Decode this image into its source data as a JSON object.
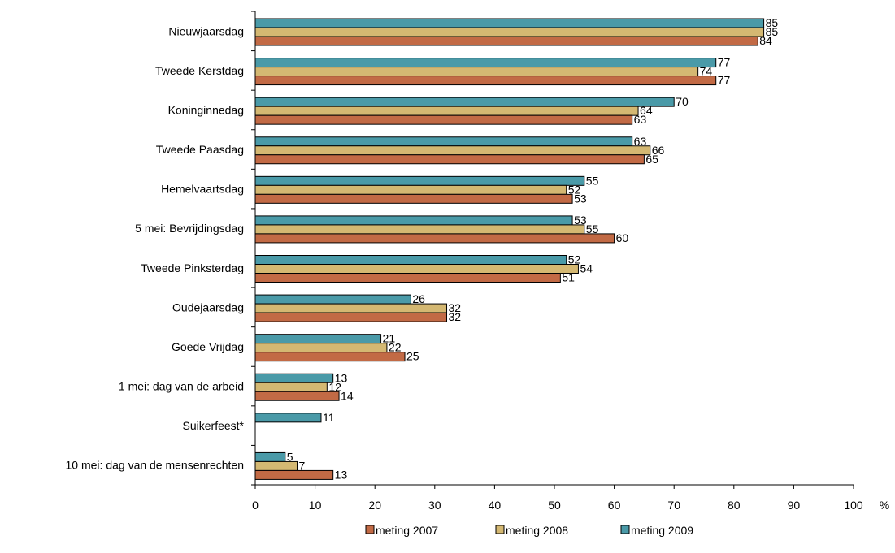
{
  "chart_data": {
    "type": "bar",
    "orientation": "horizontal",
    "categories": [
      "Nieuwjaarsdag",
      "Tweede Kerstdag",
      "Koninginnedag",
      "Tweede Paasdag",
      "Hemelvaartsdag",
      "5 mei: Bevrijdingsdag",
      "Tweede Pinksterdag",
      "Oudejaarsdag",
      "Goede Vrijdag",
      "1 mei: dag van de arbeid",
      "Suikerfeest*",
      "10 mei: dag van de mensenrechten"
    ],
    "series": [
      {
        "name": "meting 2009",
        "color": "#4a9aa8",
        "values": [
          85,
          77,
          70,
          63,
          55,
          53,
          52,
          26,
          21,
          13,
          11,
          5
        ]
      },
      {
        "name": "meting 2008",
        "color": "#d4b872",
        "values": [
          85,
          74,
          64,
          66,
          52,
          55,
          54,
          32,
          22,
          12,
          null,
          7
        ]
      },
      {
        "name": "meting 2007",
        "color": "#c26a45",
        "values": [
          84,
          77,
          63,
          65,
          53,
          60,
          51,
          32,
          25,
          14,
          null,
          13
        ]
      }
    ],
    "xlim": [
      0,
      100
    ],
    "xticks": [
      0,
      10,
      20,
      30,
      40,
      50,
      60,
      70,
      80,
      90,
      100
    ],
    "xunit": "%",
    "grid": false,
    "legend": {
      "position": "bottom",
      "order": [
        "meting 2007",
        "meting 2008",
        "meting 2009"
      ]
    }
  }
}
